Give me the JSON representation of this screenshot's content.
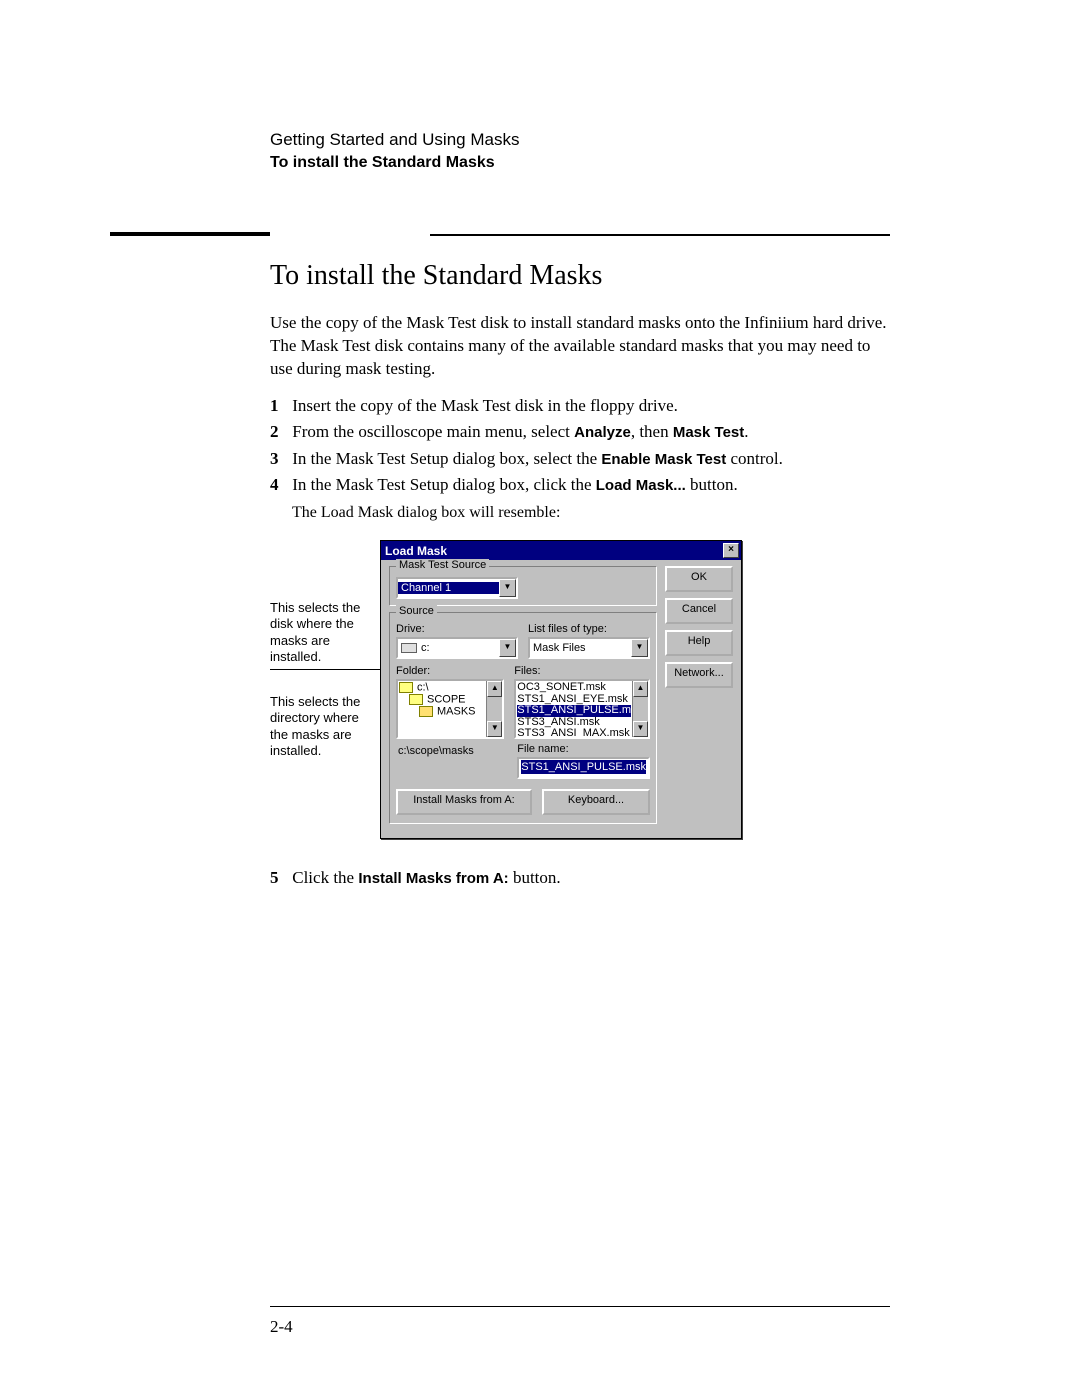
{
  "header": {
    "line1": "Getting Started and Using Masks",
    "line2": "To install the Standard Masks"
  },
  "title": "To install the Standard Masks",
  "intro": "Use the copy of the Mask Test disk to install standard masks onto the Infiniium hard drive.  The Mask Test disk contains many of the available standard masks that you may need to use during mask testing.",
  "steps": [
    {
      "n": "1",
      "pre": "Insert the copy of the Mask Test disk in the floppy drive."
    },
    {
      "n": "2",
      "pre": "From the oscilloscope main menu, select ",
      "b1": "Analyze",
      "mid": ", then ",
      "b2": "Mask Test",
      "post": "."
    },
    {
      "n": "3",
      "pre": "In the Mask Test Setup dialog box, select the ",
      "b1": "Enable Mask Test",
      "post": " control."
    },
    {
      "n": "4",
      "pre": "In the Mask Test Setup dialog box, click the ",
      "b1": "Load Mask...",
      "post": " button."
    }
  ],
  "step4_sub": "The Load Mask dialog box will resemble:",
  "step5": {
    "n": "5",
    "pre": "Click the ",
    "b1": "Install Masks from A:",
    "post": " button."
  },
  "callouts": {
    "top": "This selects the disk where the masks are installed.",
    "bottom": "This selects the directory where the masks are installed."
  },
  "dialog": {
    "title": "Load Mask",
    "group_source_label": "Mask Test Source",
    "source_channel": "Channel 1",
    "group_source2_label": "Source",
    "drive_label": "Drive:",
    "drive_value": "c:",
    "listfiles_label": "List files of type:",
    "listfiles_value": "Mask Files",
    "folder_label": "Folder:",
    "folders": [
      "c:\\",
      "SCOPE",
      "MASKS"
    ],
    "files_label": "Files:",
    "files": [
      "OC3_SONET.msk",
      "STS1_ANSI_EYE.msk",
      "STS1_ANSI_PULSE.m",
      "STS3_ANSI.msk",
      "STS3_ANSI_MAX.msk"
    ],
    "files_selected_index": 2,
    "path": "c:\\scope\\masks",
    "filename_label": "File name:",
    "filename_value": "STS1_ANSI_PULSE.msk",
    "install_btn": "Install Masks from A:",
    "keyboard_btn": "Keyboard...",
    "buttons": {
      "ok": "OK",
      "cancel": "Cancel",
      "help": "Help",
      "network": "Network..."
    },
    "colors": {
      "titlebar_bg": "#000080",
      "titlebar_fg": "#ffffff",
      "dialog_bg": "#c0c0c0",
      "selection_bg": "#000080",
      "selection_fg": "#ffffff"
    }
  },
  "page_number": "2-4"
}
